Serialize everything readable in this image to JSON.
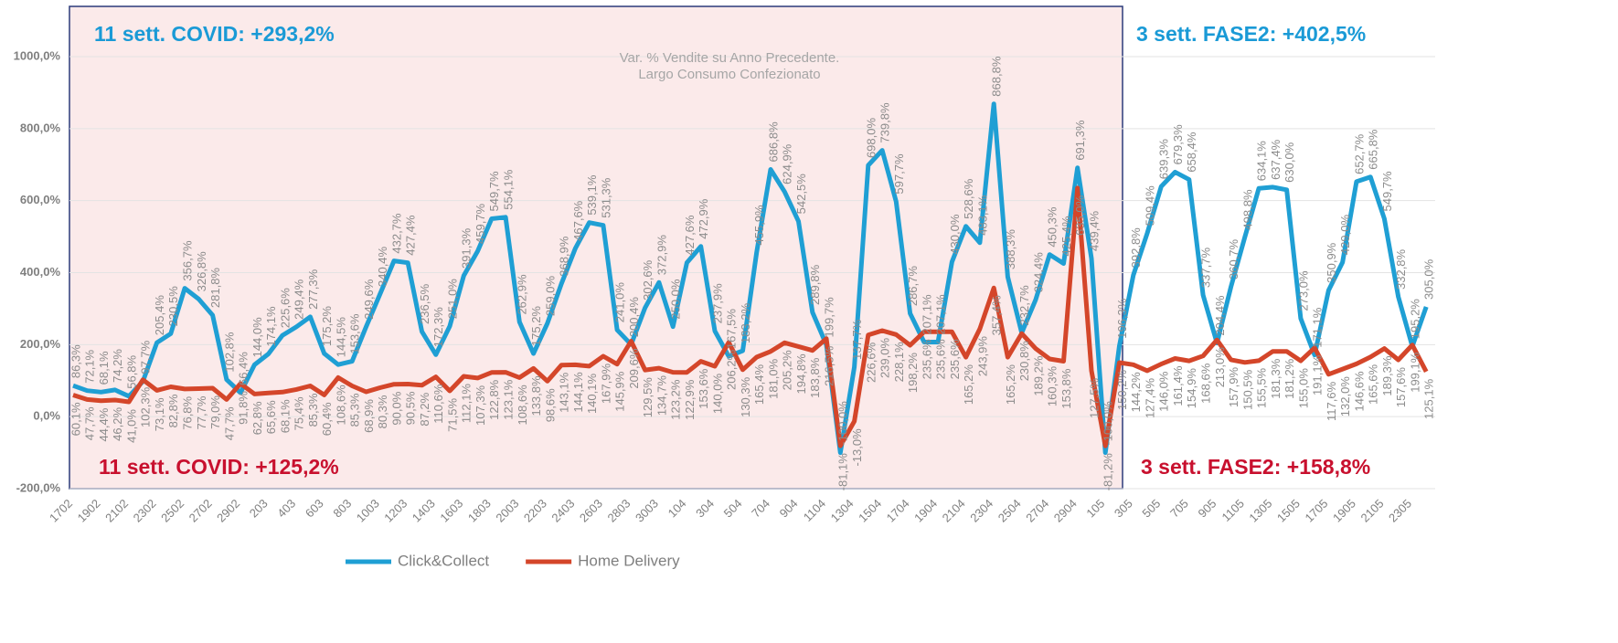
{
  "chart_data": {
    "type": "line",
    "subtitle": [
      "Var. % Vendite su Anno Precedente.",
      "Largo Consumo Confezionato"
    ],
    "annotations": [
      {
        "text": "11 sett. COVID: +293,2%",
        "color": "#1a9ad6"
      },
      {
        "text": "3 sett. FASE2: +402,5%",
        "color": "#1a9ad6"
      },
      {
        "text": "11 sett. COVID: +125,2%",
        "color": "#c8102e"
      },
      {
        "text": "3 sett. FASE2: +158,8%",
        "color": "#c8102e"
      }
    ],
    "categories": [
      "1702",
      null,
      "1902",
      null,
      "2102",
      null,
      "2302",
      null,
      "2502",
      null,
      "2702",
      null,
      "2902",
      null,
      "203",
      null,
      "403",
      null,
      "603",
      null,
      "803",
      null,
      "1003",
      null,
      "1203",
      null,
      "1403",
      null,
      "1603",
      null,
      "1803",
      null,
      "2003",
      null,
      "2203",
      null,
      "2403",
      null,
      "2603",
      null,
      "2803",
      null,
      "3003",
      null,
      "104",
      null,
      "304",
      null,
      "504",
      null,
      "704",
      null,
      "904",
      null,
      "1104",
      null,
      "1304",
      null,
      "1504",
      null,
      "1704",
      null,
      "1904",
      null,
      "2104",
      null,
      "2304",
      null,
      "2504",
      null,
      "2704",
      null,
      "2904",
      null,
      "105",
      null,
      "305",
      null,
      "505",
      null,
      "705",
      null,
      "905",
      null,
      "1105",
      null,
      "1305",
      null,
      "1505",
      null,
      "1705",
      null,
      "1905",
      null,
      "2105",
      null,
      "2305",
      null
    ],
    "series": [
      {
        "name": "Click&Collect",
        "color": "#1f9fd4",
        "values": [
          86.3,
          72.1,
          68.1,
          74.2,
          56.8,
          97.7,
          205.4,
          230.5,
          356.7,
          326.8,
          281.8,
          102.8,
          66.4,
          144.0,
          174.1,
          225.6,
          249.4,
          277.3,
          175.2,
          144.5,
          153.6,
          249.6,
          340.4,
          432.7,
          427.4,
          236.5,
          172.3,
          251.0,
          391.3,
          459.7,
          549.7,
          554.1,
          262.9,
          175.2,
          259.0,
          368.9,
          467.6,
          539.1,
          531.3,
          241.0,
          200.4,
          302.6,
          372.9,
          250.0,
          427.6,
          472.9,
          237.9,
          167.5,
          183.2,
          455.9,
          686.8,
          624.9,
          542.5,
          289.8,
          199.7,
          -100.0,
          137.7,
          698.0,
          739.8,
          597.7,
          286.7,
          207.1,
          207.1,
          430.0,
          528.6,
          483.1,
          868.8,
          388.3,
          232.7,
          324.4,
          450.3,
          425.4,
          691.3,
          439.4,
          -100.0,
          196.3,
          392.8,
          509.4,
          639.3,
          679.3,
          658.4,
          337.7,
          204.4,
          360.7,
          498.8,
          634.1,
          637.4,
          630.0,
          273.0,
          171.1,
          350.9,
          429.0,
          652.7,
          665.8,
          549.7,
          332.8,
          195.2,
          305.0
        ],
        "value_labels": [
          "86,3%",
          "72,1%",
          "68,1%",
          "74,2%",
          "56,8%",
          "97,7%",
          "205,4%",
          "230,5%",
          "356,7%",
          "326,8%",
          "281,8%",
          "102,8%",
          "66,4%",
          "144,0%",
          "174,1%",
          "225,6%",
          "249,4%",
          "277,3%",
          "175,2%",
          "144,5%",
          "153,6%",
          "249,6%",
          "340,4%",
          "432,7%",
          "427,4%",
          "236,5%",
          "172,3%",
          "251,0%",
          "391,3%",
          "459,7%",
          "549,7%",
          "554,1%",
          "262,9%",
          "175,2%",
          "259,0%",
          "368,9%",
          "467,6%",
          "539,1%",
          "531,3%",
          "241,0%",
          "200,4%",
          "302,6%",
          "372,9%",
          "250,0%",
          "427,6%",
          "472,9%",
          "237,9%",
          "167,5%",
          "183,2%",
          "455,9%",
          "686,8%",
          "624,9%",
          "542,5%",
          "289,8%",
          "199,7%",
          "-100,0%",
          "137,7%",
          "698,0%",
          "739,8%",
          "597,7%",
          "286,7%",
          "207,1%",
          "207,1%",
          "430,0%",
          "528,6%",
          "483,1%",
          "868,8%",
          "388,3%",
          "232,7%",
          "324,4%",
          "450,3%",
          "425,4%",
          "691,3%",
          "439,4%",
          "-100,0%",
          "196,3%",
          "392,8%",
          "509,4%",
          "639,3%",
          "679,3%",
          "658,4%",
          "337,7%",
          "204,4%",
          "360,7%",
          "498,8%",
          "634,1%",
          "637,4%",
          "630,0%",
          "273,0%",
          "171,1%",
          "350,9%",
          "429,0%",
          "652,7%",
          "665,8%",
          "549,7%",
          "332,8%",
          "195,2%",
          "305,0%"
        ]
      },
      {
        "name": "Home Delivery",
        "color": "#d4462a",
        "values": [
          60.1,
          47.7,
          44.4,
          46.2,
          41.0,
          102.3,
          73.1,
          82.8,
          76.8,
          77.7,
          79.0,
          47.7,
          91.8,
          62.8,
          65.6,
          68.1,
          75.4,
          85.3,
          60.4,
          108.6,
          85.3,
          68.9,
          80.3,
          90.0,
          90.5,
          87.2,
          110.6,
          71.5,
          112.1,
          107.3,
          122.8,
          123.1,
          108.6,
          133.8,
          98.6,
          143.1,
          144.1,
          140.1,
          167.9,
          145.9,
          209.6,
          129.5,
          134.7,
          123.2,
          122.9,
          153.6,
          140.0,
          206.2,
          130.3,
          165.4,
          181.0,
          205.2,
          194.8,
          183.8,
          216.5,
          -81.1,
          -13.0,
          226.6,
          239.0,
          228.1,
          198.2,
          235.6,
          235.6,
          235.6,
          165.2,
          243.9,
          357.4,
          165.2,
          230.8,
          189.2,
          160.3,
          153.8,
          635.0,
          127.5,
          -81.2,
          150.2,
          144.2,
          127.4,
          146.0,
          161.4,
          154.9,
          168.6,
          213.0,
          157.9,
          150.5,
          155.5,
          181.3,
          181.2,
          155.0,
          191.1,
          117.6,
          132.0,
          146.6,
          165.6,
          189.3,
          157.6,
          199.1,
          125.1
        ],
        "value_labels": [
          "60,1%",
          "47,7%",
          "44,4%",
          "46,2%",
          "41,0%",
          "102,3%",
          "73,1%",
          "82,8%",
          "76,8%",
          "77,7%",
          "79,0%",
          "47,7%",
          "91,8%",
          "62,8%",
          "65,6%",
          "68,1%",
          "75,4%",
          "85,3%",
          "60,4%",
          "108,6%",
          "85,3%",
          "68,9%",
          "80,3%",
          "90,0%",
          "90,5%",
          "87,2%",
          "110,6%",
          "71,5%",
          "112,1%",
          "107,3%",
          "122,8%",
          "123,1%",
          "108,6%",
          "133,8%",
          "98,6%",
          "143,1%",
          "144,1%",
          "140,1%",
          "167,9%",
          "145,9%",
          "209,6%",
          "129,5%",
          "134,7%",
          "123,2%",
          "122,9%",
          "153,6%",
          "140,0%",
          "206,2%",
          "130,3%",
          "165,4%",
          "181,0%",
          "205,2%",
          "194,8%",
          "183,8%",
          "216,5%",
          "-81,1%",
          "-13,0%",
          "226,6%",
          "239,0%",
          "228,1%",
          "198,2%",
          "235,6%",
          "235,6%",
          "235,6%",
          "165,2%",
          "243,9%",
          "357,4%",
          "165,2%",
          "230,8%",
          "189,2%",
          "160,3%",
          "153,8%",
          "635,0%",
          "127,5%",
          "-81,2%",
          "150,2%",
          "144,2%",
          "127,4%",
          "146,0%",
          "161,4%",
          "154,9%",
          "168,6%",
          "213,0%",
          "157,9%",
          "150,5%",
          "155,5%",
          "181,3%",
          "181,2%",
          "155,0%",
          "191,1%",
          "117,6%",
          "132,0%",
          "146,6%",
          "165,6%",
          "189,3%",
          "157,6%",
          "199,1%",
          "125,1%"
        ]
      }
    ],
    "ylim": [
      -200,
      1000
    ],
    "yticks": [
      {
        "value": -200,
        "label": "-200,0%"
      },
      {
        "value": 0,
        "label": "0,0%"
      },
      {
        "value": 200,
        "label": "200,0%"
      },
      {
        "value": 400,
        "label": "400,0%"
      },
      {
        "value": 600,
        "label": "600,0%"
      },
      {
        "value": 800,
        "label": "800,0%"
      },
      {
        "value": 1000,
        "label": "1000,0%"
      }
    ],
    "grid": true,
    "legend": "bottom"
  }
}
